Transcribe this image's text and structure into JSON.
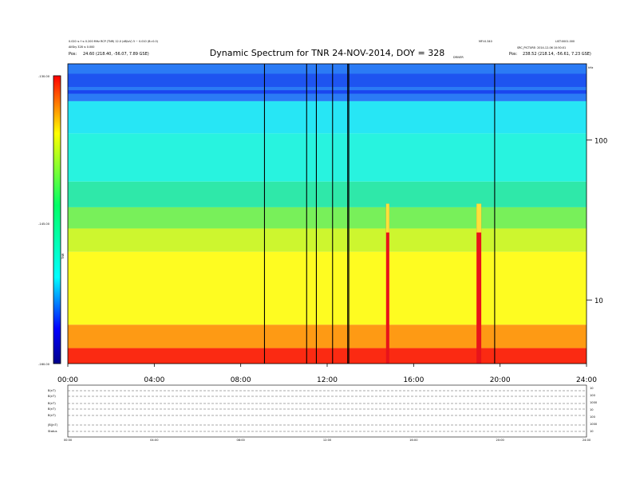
{
  "header": {
    "title": "Dynamic Spectrum for TNR 24-NOV-2014, DOY = 328",
    "left_info_1": "0.020 ≤ f ≤ 0.200 MHz  RCP  (TNR)  12.0 (dB/uV)  5 ~ 0.010  (B=0.0)",
    "left_info_2": "AllSky 328  ≤ 0.000",
    "left_info_3": "24.60 (218.40, -56.07, 7.89 GSE)",
    "left_info_3_prefix": "Pos:",
    "right_info_1": "MFI:0.340",
    "right_info_2": "LIST:0001.000",
    "right_info_3": "SRC_PICTURE:  2014-12-06  10:50:01",
    "right_info_4": "238.52 (218.14, -56.61, 7.23 GSE)",
    "right_info_4_prefix": "Pos:",
    "center_info": "DRIVER",
    "top_right_unit": "kHz"
  },
  "colorbar": {
    "ticks": [
      "-130.00",
      "-145.00",
      "-160.00"
    ],
    "label": "TNR"
  },
  "chart_data": {
    "type": "heatmap",
    "title": "Dynamic Spectrum for TNR 24-NOV-2014, DOY = 328",
    "xlabel": "",
    "ylabel": "",
    "x_range_hours": [
      0,
      24
    ],
    "x_ticks": [
      "00:00",
      "04:00",
      "08:00",
      "12:00",
      "16:00",
      "20:00",
      "24:00"
    ],
    "y_scale": "log",
    "y_unit": "kHz",
    "y_range": [
      4,
      300
    ],
    "y_ticks": [
      "100",
      "10"
    ],
    "colorbar_range_db": [
      -160,
      -130
    ],
    "colormap": [
      "#00008a",
      "#0000ff",
      "#00ffff",
      "#00ff66",
      "#ffff00",
      "#ff0000"
    ],
    "background_bands": [
      {
        "freq_from": 300,
        "freq_to": 175,
        "color": "#2b7bf5"
      },
      {
        "freq_from": 175,
        "freq_to": 110,
        "color": "#27e6f5"
      },
      {
        "freq_from": 110,
        "freq_to": 55,
        "color": "#28f3df"
      },
      {
        "freq_from": 55,
        "freq_to": 38,
        "color": "#2fe8a9"
      },
      {
        "freq_from": 38,
        "freq_to": 28,
        "color": "#78f05a"
      },
      {
        "freq_from": 28,
        "freq_to": 20,
        "color": "#cdf62f"
      },
      {
        "freq_from": 20,
        "freq_to": 7,
        "color": "#fefc21"
      },
      {
        "freq_from": 7,
        "freq_to": 5,
        "color": "#fe9a14"
      },
      {
        "freq_from": 5,
        "freq_to": 4,
        "color": "#fb2a12"
      }
    ],
    "dark_lanes": [
      {
        "freq_from": 260,
        "freq_to": 215,
        "color": "#1e54f0"
      },
      {
        "freq_from": 205,
        "freq_to": 195,
        "color": "#1a46ef"
      }
    ],
    "data_gaps_hours": [
      9.1,
      11.05,
      11.5,
      12.25,
      12.95,
      13.0,
      19.75
    ],
    "radio_bursts": [
      {
        "time_hours": 14.8,
        "freq_top_khz": 40,
        "width_hours": 0.15
      },
      {
        "time_hours": 19.02,
        "freq_top_khz": 40,
        "width_hours": 0.22
      }
    ]
  },
  "bottom_panel": {
    "row_labels": [
      "B(nT)",
      "B(nT)",
      "B(nT)",
      "B(nT)",
      "B(nT)",
      "|B|(nT)",
      "Status"
    ],
    "x_ticks": [
      "00:00",
      "04:00",
      "08:00",
      "12:00",
      "16:00",
      "20:00",
      "24:00"
    ],
    "right_ticks": [
      "10",
      "100",
      "1000",
      "10",
      "100",
      "1000",
      "10"
    ]
  }
}
